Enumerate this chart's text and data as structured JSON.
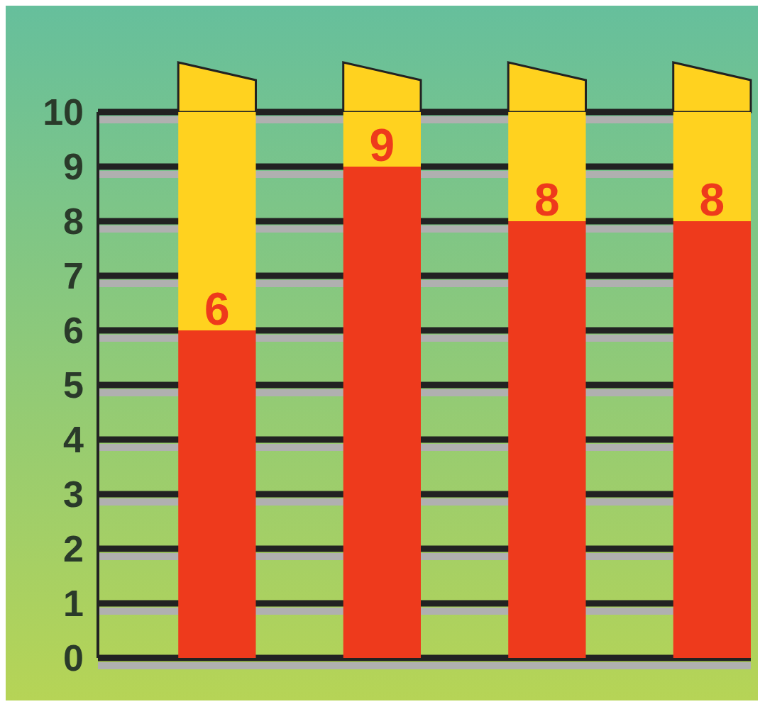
{
  "chart_data": {
    "type": "bar",
    "categories": [
      null,
      null,
      null,
      null
    ],
    "stacked": true,
    "series": [
      {
        "color": "#ee3a1c",
        "values": [
          6,
          9,
          8,
          8
        ],
        "value_labels": [
          "6",
          "9",
          "8",
          "8"
        ]
      },
      {
        "color": "#ffd21f",
        "values": [
          4,
          1,
          2,
          2
        ]
      }
    ],
    "ylim": [
      0,
      10
    ],
    "yticks": [
      0,
      1,
      2,
      3,
      4,
      5,
      6,
      7,
      8,
      9,
      10
    ],
    "grid": "y"
  }
}
